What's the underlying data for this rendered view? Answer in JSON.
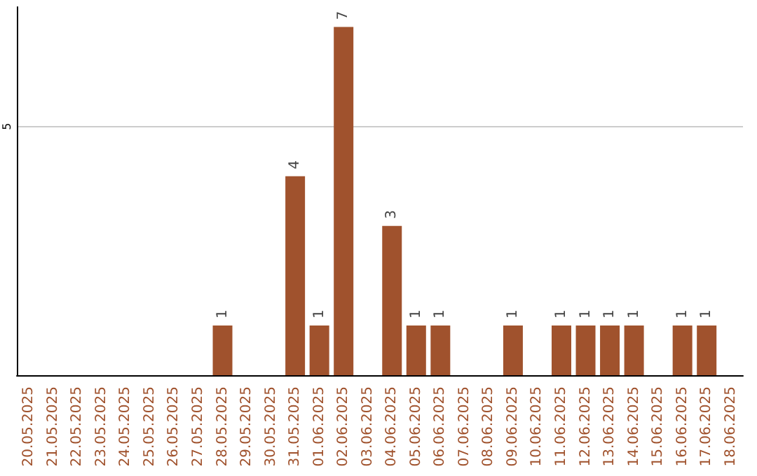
{
  "chart_data": {
    "type": "bar",
    "categories": [
      "20.05.2025",
      "21.05.2025",
      "22.05.2025",
      "23.05.2025",
      "24.05.2025",
      "25.05.2025",
      "26.05.2025",
      "27.05.2025",
      "28.05.2025",
      "29.05.2025",
      "30.05.2025",
      "31.05.2025",
      "01.06.2025",
      "02.06.2025",
      "03.06.2025",
      "04.06.2025",
      "05.06.2025",
      "06.06.2025",
      "07.06.2025",
      "08.06.2025",
      "09.06.2025",
      "10.06.2025",
      "11.06.2025",
      "12.06.2025",
      "13.06.2025",
      "14.06.2025",
      "15.06.2025",
      "16.06.2025",
      "17.06.2025",
      "18.06.2025"
    ],
    "values": [
      0,
      0,
      0,
      0,
      0,
      0,
      0,
      0,
      1,
      0,
      0,
      4,
      1,
      7,
      0,
      3,
      1,
      1,
      0,
      0,
      1,
      0,
      1,
      1,
      1,
      1,
      0,
      1,
      1,
      0
    ],
    "value_labels": [
      null,
      null,
      null,
      null,
      null,
      null,
      null,
      null,
      "1",
      null,
      null,
      "4",
      "1",
      "7",
      null,
      "3",
      "1",
      "1",
      null,
      null,
      "1",
      null,
      "1",
      "1",
      "1",
      "1",
      null,
      "1",
      "1",
      null
    ],
    "color": "#a0522d",
    "ylim": [
      0,
      7.4
    ],
    "yticks": [
      5
    ],
    "grid": "y"
  }
}
